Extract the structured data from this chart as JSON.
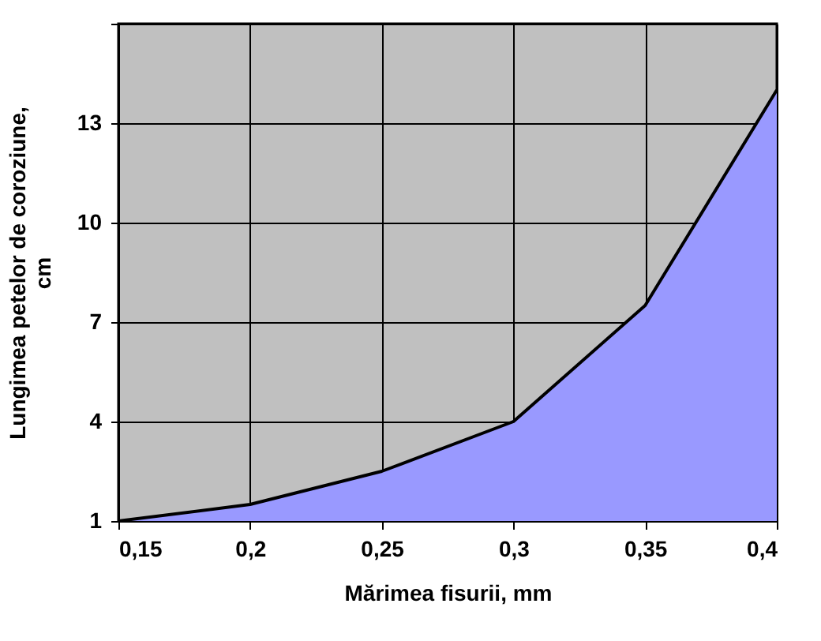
{
  "chart_data": {
    "type": "area",
    "xlabel": "Mărimea fisurii, mm",
    "ylabel": "Lungimea petelor de coroziune, cm",
    "x": [
      0.15,
      0.2,
      0.25,
      0.3,
      0.35,
      0.4
    ],
    "series": [
      {
        "color": "#9999ff",
        "values": [
          1,
          1.5,
          2.5,
          4,
          7.5,
          14
        ]
      }
    ],
    "xlim": [
      0.15,
      0.4
    ],
    "xticks": [
      {
        "value": 0.15,
        "label": "0,15"
      },
      {
        "value": 0.2,
        "label": "0,2"
      },
      {
        "value": 0.25,
        "label": "0,25"
      },
      {
        "value": 0.3,
        "label": "0,3"
      },
      {
        "value": 0.35,
        "label": "0,35"
      },
      {
        "value": 0.4,
        "label": "0,4"
      }
    ],
    "ylim": [
      1,
      16
    ],
    "yticks": [
      1,
      4,
      7,
      10,
      13,
      {
        "value": 16,
        "label": null
      }
    ],
    "grid": true
  }
}
